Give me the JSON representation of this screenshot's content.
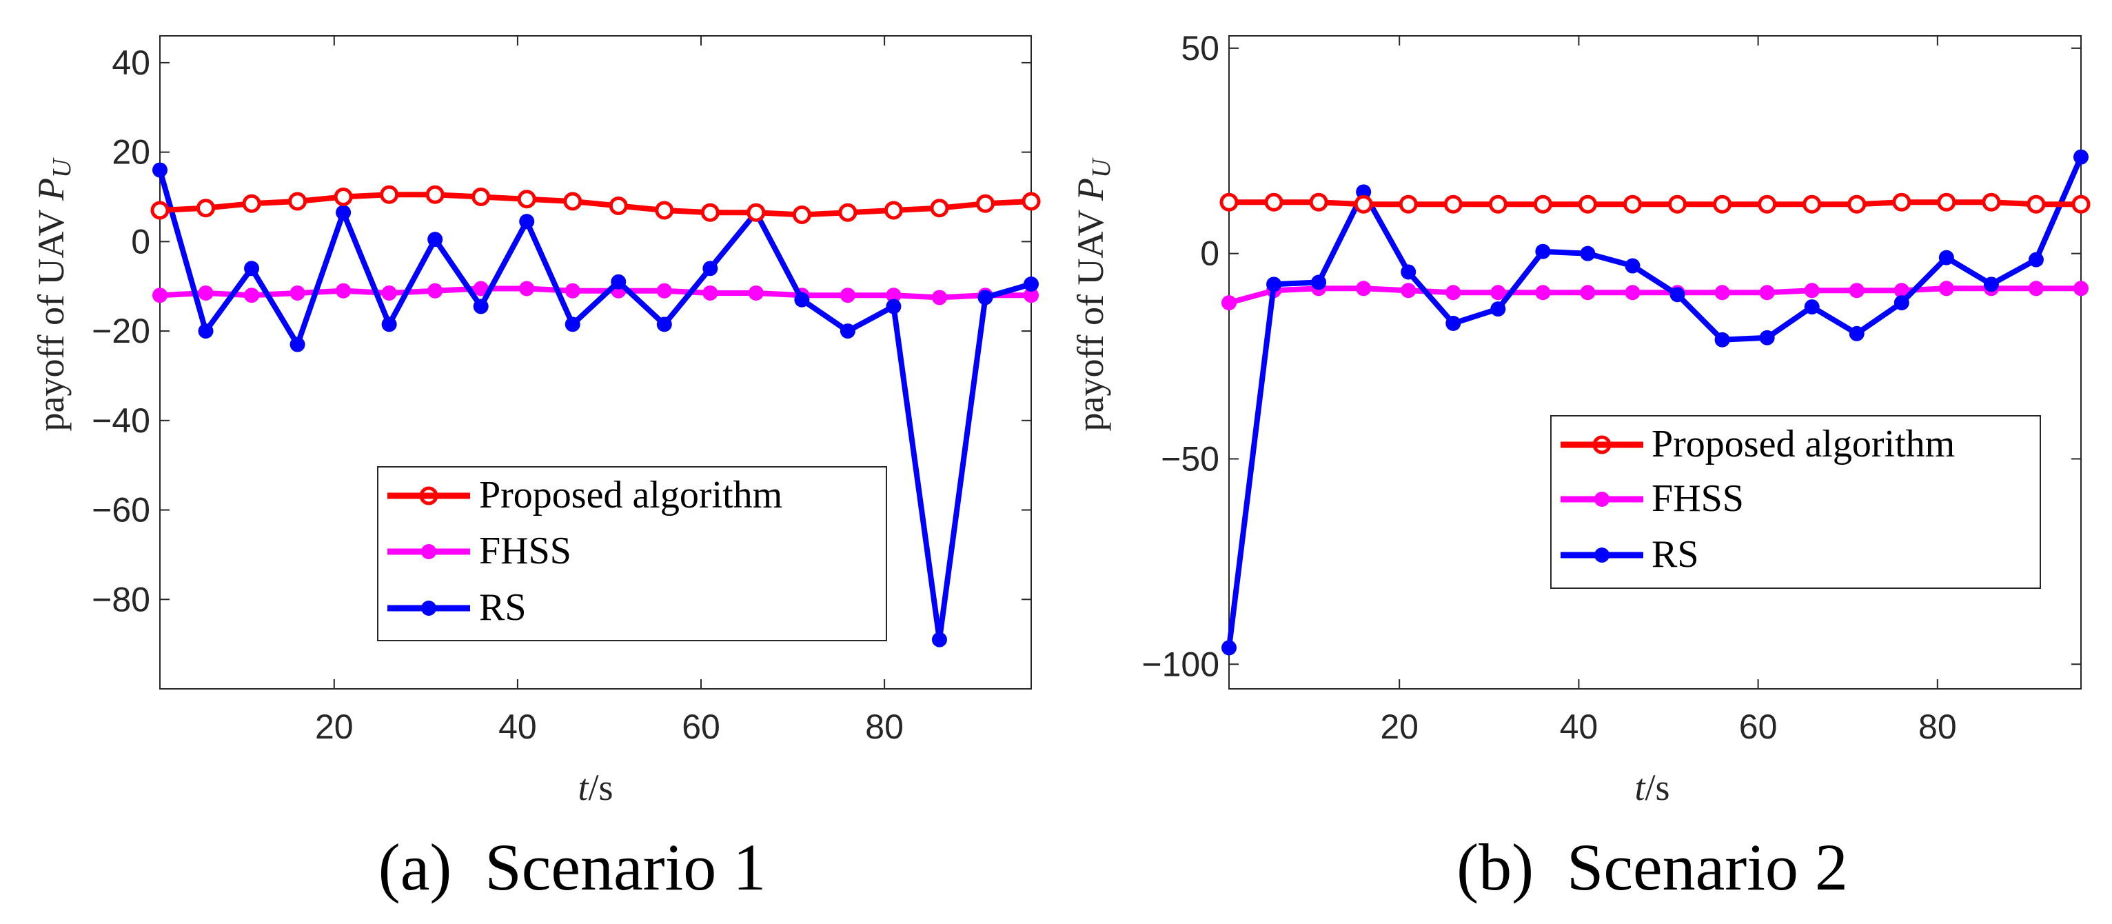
{
  "chart_data": [
    {
      "type": "line",
      "caption": "(a)  Scenario 1",
      "xlabel": "t/s",
      "ylabel": "payoff of UAV P_U",
      "xlim": [
        1,
        96
      ],
      "ylim": [
        -100,
        46
      ],
      "xticks": [
        20,
        40,
        60,
        80
      ],
      "yticks": [
        40,
        20,
        0,
        -20,
        -40,
        -60,
        -80
      ],
      "x": [
        1,
        6,
        11,
        16,
        21,
        26,
        31,
        36,
        41,
        46,
        51,
        56,
        61,
        66,
        71,
        76,
        81,
        86,
        91,
        96
      ],
      "legend_position": "bottom-right",
      "series": [
        {
          "name": "Proposed algorithm",
          "color": "#ff0000",
          "marker": "open-circle",
          "values": [
            7,
            7.5,
            8.5,
            9,
            10,
            10.5,
            10.5,
            10,
            9.5,
            9,
            8,
            7,
            6.5,
            6.5,
            6,
            6.5,
            7,
            7.5,
            8.5,
            9
          ]
        },
        {
          "name": "FHSS",
          "color": "#ff00ff",
          "marker": "filled-circle",
          "values": [
            -12,
            -11.5,
            -12,
            -11.5,
            -11,
            -11.5,
            -11,
            -10.5,
            -10.5,
            -11,
            -11,
            -11,
            -11.5,
            -11.5,
            -12,
            -12,
            -12,
            -12.5,
            -12,
            -12
          ]
        },
        {
          "name": "RS",
          "color": "#0000ff",
          "marker": "filled-circle",
          "values": [
            16,
            -20,
            -6,
            -23,
            6.5,
            -18.5,
            0.5,
            -14.5,
            4.5,
            -18.5,
            -9,
            -18.5,
            -6,
            6.5,
            -13,
            -20,
            -14.5,
            -89,
            -12.5,
            -9.5
          ]
        }
      ]
    },
    {
      "type": "line",
      "caption": "(b)  Scenario 2",
      "xlabel": "t/s",
      "ylabel": "payoff of UAV P_U",
      "xlim": [
        1,
        96
      ],
      "ylim": [
        -106,
        53
      ],
      "xticks": [
        20,
        40,
        60,
        80
      ],
      "yticks": [
        50,
        0,
        -50,
        -100
      ],
      "x": [
        1,
        6,
        11,
        16,
        21,
        26,
        31,
        36,
        41,
        46,
        51,
        56,
        61,
        66,
        71,
        76,
        81,
        86,
        91,
        96
      ],
      "legend_position": "bottom-right",
      "series": [
        {
          "name": "Proposed algorithm",
          "color": "#ff0000",
          "marker": "open-circle",
          "values": [
            12.5,
            12.5,
            12.5,
            12,
            12,
            12,
            12,
            12,
            12,
            12,
            12,
            12,
            12,
            12,
            12,
            12.5,
            12.5,
            12.5,
            12,
            12
          ]
        },
        {
          "name": "FHSS",
          "color": "#ff00ff",
          "marker": "filled-circle",
          "values": [
            -12,
            -9,
            -8.5,
            -8.5,
            -9,
            -9.5,
            -9.5,
            -9.5,
            -9.5,
            -9.5,
            -9.5,
            -9.5,
            -9.5,
            -9,
            -9,
            -9,
            -8.5,
            -8.5,
            -8.5,
            -8.5
          ]
        },
        {
          "name": "RS",
          "color": "#0000ff",
          "marker": "filled-circle",
          "values": [
            -96,
            -7.5,
            -7,
            15,
            -4.5,
            -17,
            -13.5,
            0.5,
            0,
            -3,
            -10,
            -21,
            -20.5,
            -13,
            -19.5,
            -12,
            -1,
            -7.5,
            -1.5,
            23.5
          ]
        }
      ]
    }
  ]
}
